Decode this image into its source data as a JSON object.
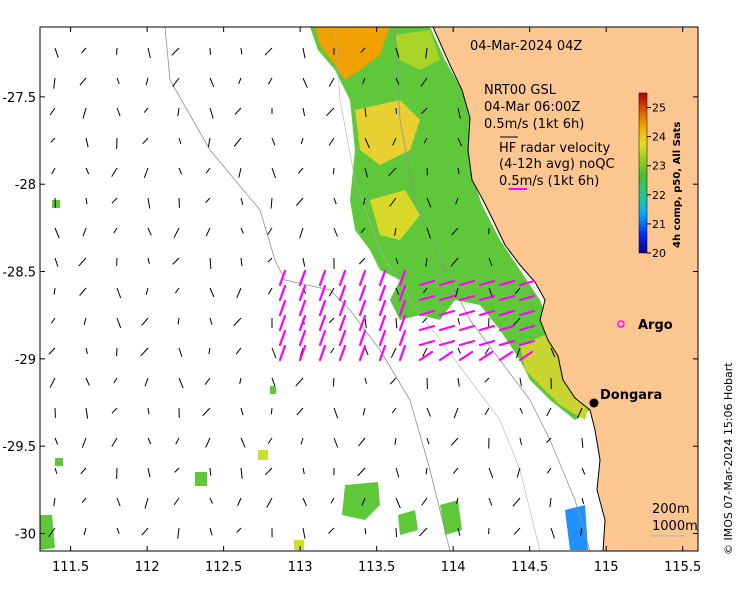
{
  "map": {
    "date_label": "04-Mar-2024 04Z",
    "model_label": "NRT00 GSL",
    "model_time": "04-Mar 06:00Z",
    "model_scale": "0.5m/s (1kt 6h)",
    "radar_line1": "HF radar velocity",
    "radar_line2": "(4-12h avg) noQC",
    "radar_scale": "0.5m/s (1kt 6h)",
    "isobath_200": "200m",
    "isobath_1000": "1000m",
    "credit": "© IMOS 07-Mar-2024 15:06 Hobart",
    "lon_ticks": [
      "111.5",
      "112",
      "112.5",
      "113",
      "113.5",
      "114",
      "114.5",
      "115",
      "115.5"
    ],
    "lat_ticks": [
      "-27.5",
      "-28",
      "-28.5",
      "-29",
      "-29.5",
      "-30"
    ],
    "lon_range": [
      111.3,
      115.6
    ],
    "lat_range": [
      -30.1,
      -27.1
    ]
  },
  "colorbar": {
    "title": "4h comp, p50, All Sats",
    "ticks": [
      "25",
      "24",
      "23",
      "22",
      "21",
      "20"
    ],
    "range": [
      20,
      25.5
    ]
  },
  "places": [
    {
      "name": "Dongara",
      "lon": 114.93,
      "lat": -29.25
    },
    {
      "name": "Argo",
      "lon": 115.05,
      "lat": -28.84
    }
  ],
  "colors": {
    "land": "#fcc691",
    "radar": "#ff00ff",
    "sst_warm": "#f0a000",
    "sst_mid": "#5ec83a",
    "sst_cool": "#1e90ff"
  }
}
